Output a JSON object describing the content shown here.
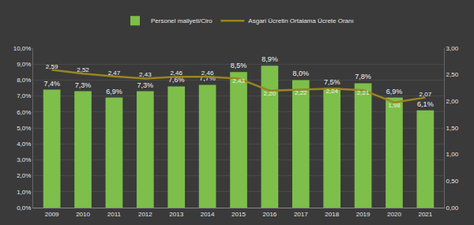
{
  "chart_data": {
    "type": "bar",
    "categories": [
      "2009",
      "2010",
      "2011",
      "2012",
      "2013",
      "2014",
      "2015",
      "2016",
      "2017",
      "2018",
      "2019",
      "2020",
      "2021"
    ],
    "series": [
      {
        "name": "Personel maliyeti/Ciro",
        "type": "bar",
        "color": "#7dbf4a",
        "values": [
          7.4,
          7.3,
          6.9,
          7.3,
          7.6,
          7.7,
          8.5,
          8.9,
          8.0,
          7.5,
          7.8,
          6.9,
          6.1
        ],
        "value_labels": [
          "7,4%",
          "7,3%",
          "6,9%",
          "7,3%",
          "7,6%",
          "7,7%",
          "8,5%",
          "8,9%",
          "8,0%",
          "7,5%",
          "7,8%",
          "6,9%",
          "6,1%"
        ]
      },
      {
        "name": "Asgari Ücretin Ortalama Ücrete Oranı",
        "type": "line",
        "color": "#9a8420",
        "axis": "y2",
        "values": [
          2.59,
          2.52,
          2.47,
          2.43,
          2.46,
          2.46,
          2.43,
          2.2,
          2.22,
          2.24,
          2.21,
          1.98,
          2.07
        ],
        "value_labels": [
          "2,59",
          "2,52",
          "2,47",
          "2,43",
          "2,46",
          "2,46",
          "2,43",
          "2,20",
          "2,22",
          "2,24",
          "2,21",
          "1,98",
          "2,07"
        ]
      }
    ],
    "ylim": [
      0,
      10
    ],
    "yticks": [
      {
        "value": 0,
        "label": "0,0%"
      },
      {
        "value": 1,
        "label": "1,0%"
      },
      {
        "value": 2,
        "label": "2,0%"
      },
      {
        "value": 3,
        "label": "3,0%"
      },
      {
        "value": 4,
        "label": "4,0%"
      },
      {
        "value": 5,
        "label": "5,0%"
      },
      {
        "value": 6,
        "label": "6,0%"
      },
      {
        "value": 7,
        "label": "7,0%"
      },
      {
        "value": 8,
        "label": "8,0%"
      },
      {
        "value": 9,
        "label": "9,0%"
      },
      {
        "value": 10,
        "label": "10,0%"
      }
    ],
    "y2lim": [
      0,
      3
    ],
    "y2ticks": [
      {
        "value": 0,
        "label": "0,00"
      },
      {
        "value": 0.5,
        "label": "0,50"
      },
      {
        "value": 1,
        "label": "1,00"
      },
      {
        "value": 1.5,
        "label": "1,50"
      },
      {
        "value": 2,
        "label": "2,00"
      },
      {
        "value": 2.5,
        "label": "2,50"
      },
      {
        "value": 3,
        "label": "3,00"
      }
    ],
    "grid": true,
    "legend": "top",
    "data_labels": true
  }
}
